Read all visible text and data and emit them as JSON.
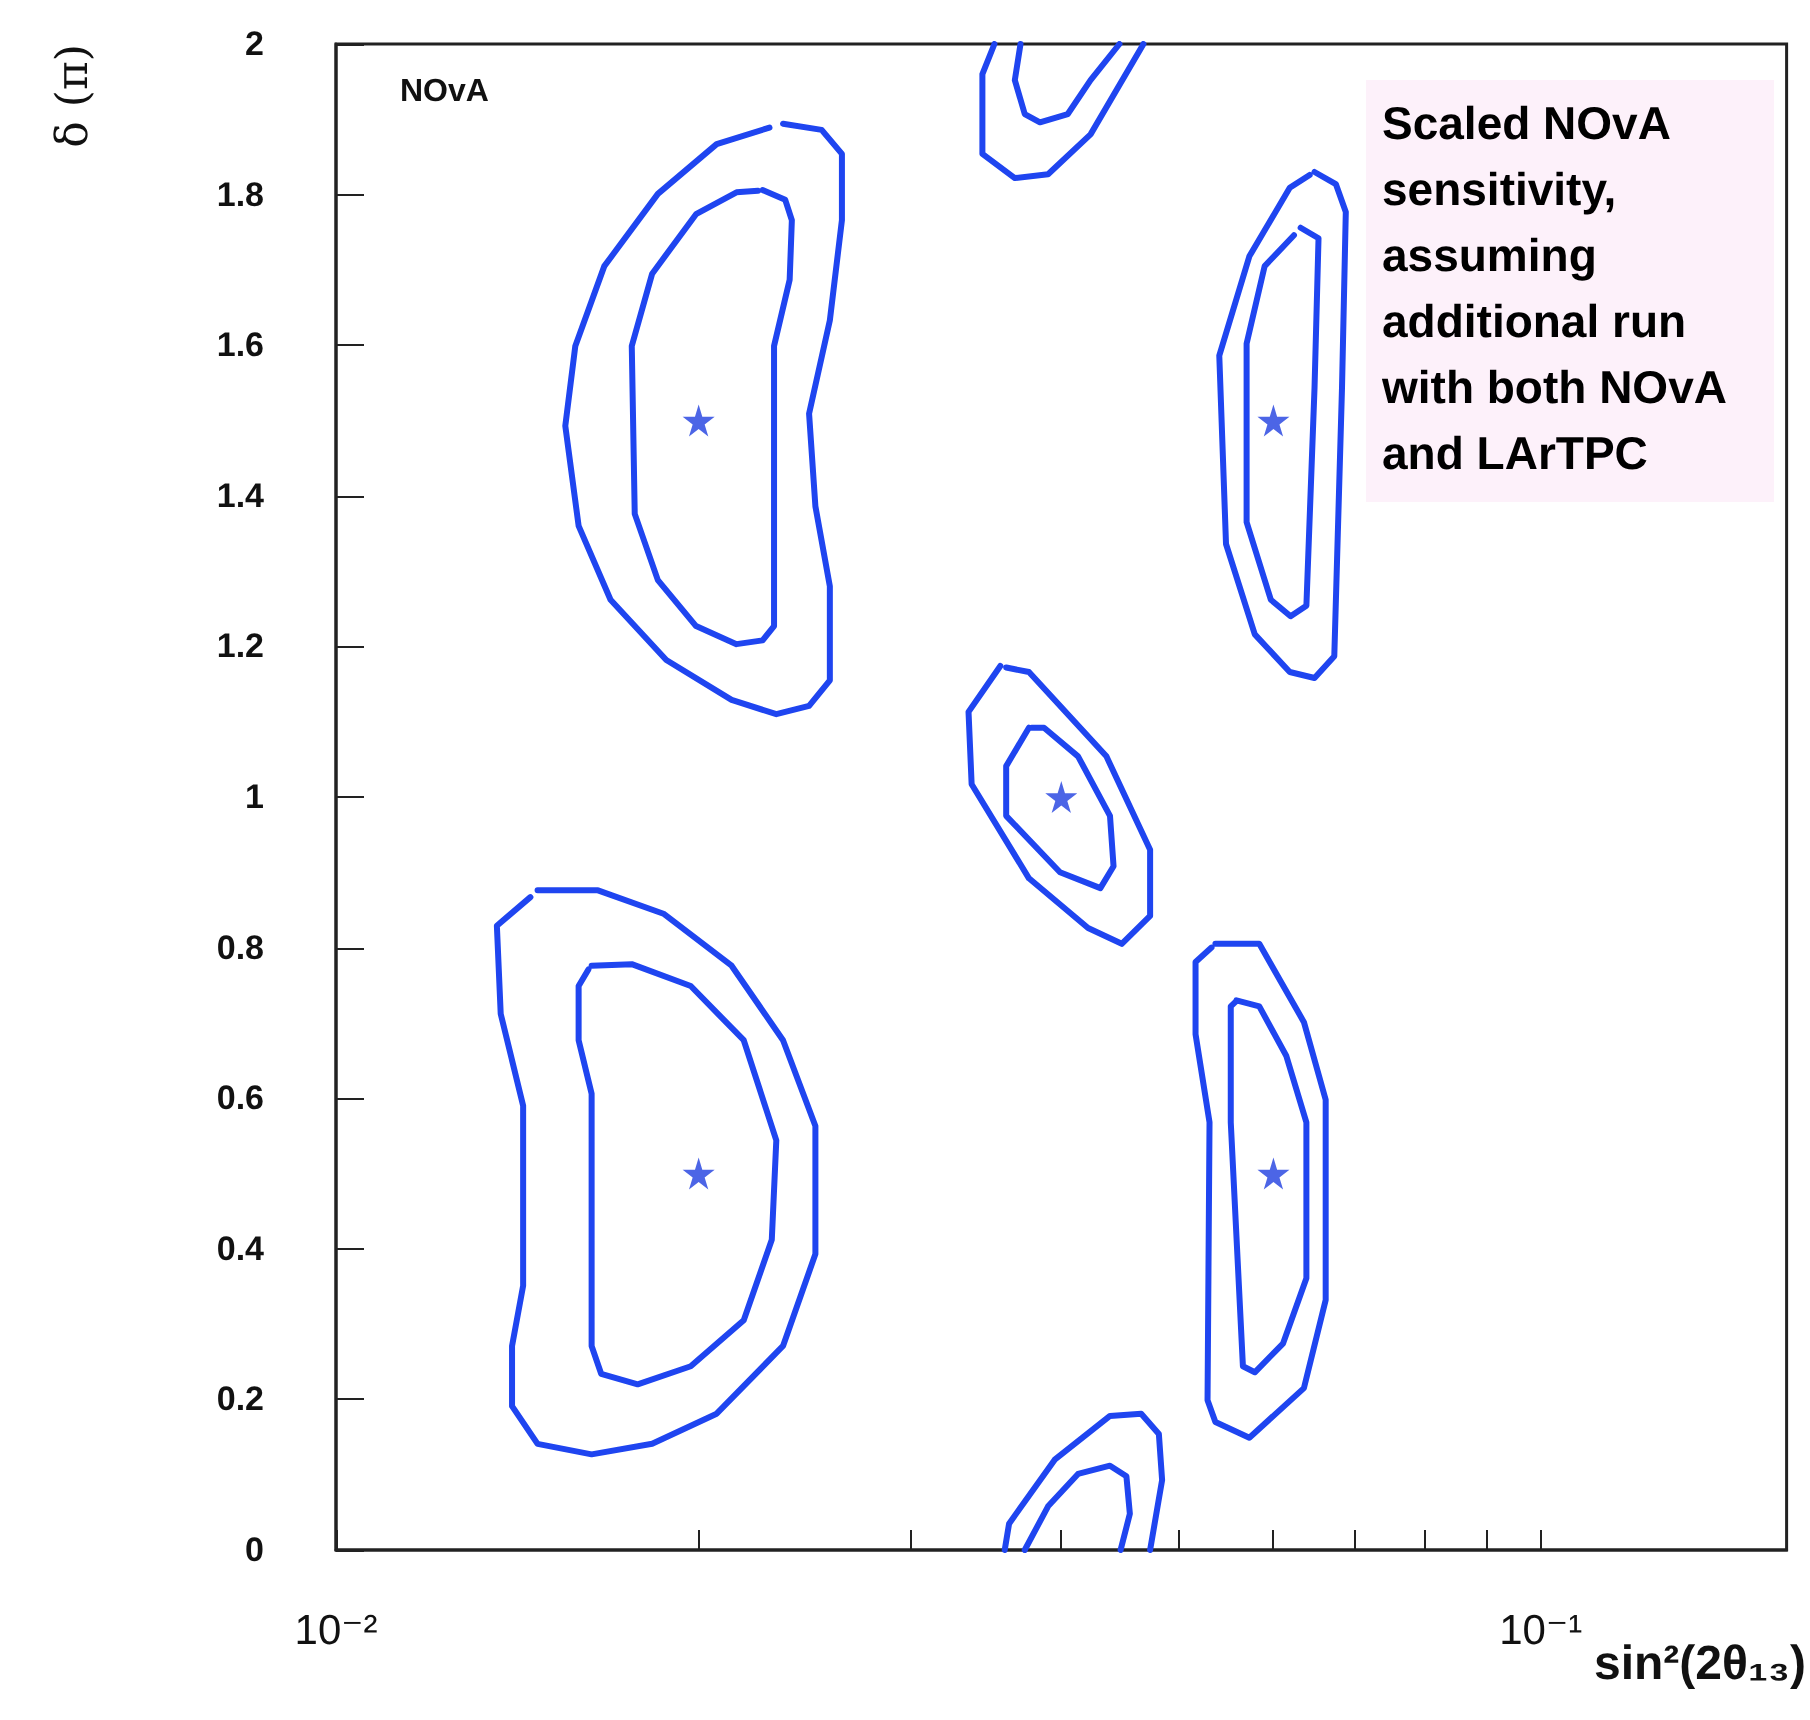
{
  "chart_data": {
    "type": "line",
    "xlabel": "sin²(2θ₁₃)",
    "ylabel": "δ (π)",
    "annotations": [
      "NOvA",
      "Scaled NOvA sensitivity, assuming additional run with both NOvA and LArTPC"
    ],
    "log": "x",
    "grid": false,
    "marker": "none",
    "line_style": "solid",
    "xlim": [
      0.01,
      0.16
    ],
    "ylim": [
      0,
      2
    ],
    "xticks": [
      {
        "value": 0.01,
        "label": "10⁻²"
      },
      {
        "value": 0.02,
        "label": null
      },
      {
        "value": 0.03,
        "label": null
      },
      {
        "value": 0.04,
        "label": null
      },
      {
        "value": 0.05,
        "label": null
      },
      {
        "value": 0.06,
        "label": null
      },
      {
        "value": 0.07,
        "label": null
      },
      {
        "value": 0.08,
        "label": null
      },
      {
        "value": 0.09,
        "label": null
      },
      {
        "value": 0.1,
        "label": "10⁻¹"
      }
    ],
    "yticks": [
      0,
      0.2,
      0.4,
      0.6,
      0.8,
      1,
      1.2,
      1.4,
      1.6,
      1.8,
      2
    ],
    "series": [
      {
        "color": "#1f45f0",
        "x": [
          0.0235,
          0.0253,
          0.0263,
          0.0263,
          0.0257,
          0.0247,
          0.025,
          0.0257,
          0.0257,
          0.0247,
          0.0232,
          0.0213,
          0.0188,
          0.0169,
          0.0159,
          0.0155,
          0.0158,
          0.0167,
          0.0185,
          0.0207,
          0.0229
        ],
        "values": [
          1.894,
          1.886,
          1.854,
          1.766,
          1.633,
          1.509,
          1.386,
          1.28,
          1.155,
          1.121,
          1.11,
          1.129,
          1.182,
          1.262,
          1.36,
          1.493,
          1.599,
          1.705,
          1.801,
          1.867,
          1.889
        ]
      },
      {
        "color": "#1f45f0",
        "x": [
          0.0226,
          0.0236,
          0.0239,
          0.0238,
          0.0231,
          0.0231,
          0.0231,
          0.0226,
          0.0215,
          0.0199,
          0.0185,
          0.0177,
          0.0176,
          0.0183,
          0.0199,
          0.0215,
          0.0224
        ],
        "values": [
          1.806,
          1.793,
          1.766,
          1.687,
          1.599,
          1.44,
          1.227,
          1.208,
          1.203,
          1.227,
          1.288,
          1.376,
          1.599,
          1.695,
          1.774,
          1.803,
          1.805
        ]
      },
      {
        "color": "#1f45f0",
        "x": [
          0.0147,
          0.0165,
          0.0187,
          0.0213,
          0.0235,
          0.025,
          0.025,
          0.0235,
          0.0207,
          0.0183,
          0.0163,
          0.0147,
          0.014,
          0.014,
          0.0143,
          0.0143,
          0.0137,
          0.0136,
          0.0145
        ],
        "values": [
          0.876,
          0.876,
          0.845,
          0.776,
          0.677,
          0.563,
          0.393,
          0.271,
          0.181,
          0.141,
          0.127,
          0.141,
          0.191,
          0.271,
          0.351,
          0.59,
          0.712,
          0.829,
          0.867
        ]
      },
      {
        "color": "#1f45f0",
        "x": [
          0.0163,
          0.0176,
          0.0197,
          0.0218,
          0.0232,
          0.023,
          0.0218,
          0.0197,
          0.0178,
          0.0166,
          0.0163,
          0.0163,
          0.0159,
          0.0159,
          0.0162
        ],
        "values": [
          0.776,
          0.778,
          0.749,
          0.677,
          0.544,
          0.412,
          0.305,
          0.244,
          0.22,
          0.234,
          0.271,
          0.606,
          0.677,
          0.749,
          0.771
        ]
      },
      {
        "color": "#1f45f0",
        "x": [
          0.0352,
          0.0344,
          0.0344,
          0.0366,
          0.039,
          0.0423,
          0.0468
        ],
        "values": [
          2,
          1.96,
          1.854,
          1.822,
          1.827,
          1.88,
          2
        ]
      },
      {
        "color": "#1f45f0",
        "x": [
          0.037,
          0.0366,
          0.0373,
          0.0384,
          0.0405,
          0.0423,
          0.0447
        ],
        "values": [
          2,
          1.952,
          1.907,
          1.896,
          1.907,
          1.952,
          2
        ]
      },
      {
        "color": "#1f45f0",
        "x": [
          0.0356,
          0.0335,
          0.0337,
          0.0376,
          0.0421,
          0.0449,
          0.0474,
          0.0474,
          0.0436,
          0.0376,
          0.036
        ],
        "values": [
          1.174,
          1.113,
          1.017,
          0.892,
          0.826,
          0.805,
          0.842,
          0.93,
          1.054,
          1.166,
          1.172
        ]
      },
      {
        "color": "#1f45f0",
        "x": [
          0.0376,
          0.036,
          0.036,
          0.0399,
          0.0431,
          0.0442,
          0.0439,
          0.0413,
          0.0387,
          0.0378
        ],
        "values": [
          1.092,
          1.041,
          0.975,
          0.9,
          0.879,
          0.908,
          0.975,
          1.054,
          1.092,
          1.092
        ]
      },
      {
        "color": "#1f45f0",
        "x": [
          0.0359,
          0.0362,
          0.0395,
          0.0439,
          0.0466,
          0.0482,
          0.0485,
          0.0474
        ],
        "values": [
          0,
          0.035,
          0.12,
          0.178,
          0.181,
          0.154,
          0.093,
          0
        ]
      },
      {
        "color": "#1f45f0",
        "x": [
          0.0373,
          0.039,
          0.0413,
          0.0439,
          0.0453,
          0.0456,
          0.0448
        ],
        "values": [
          0,
          0.058,
          0.101,
          0.112,
          0.098,
          0.048,
          0
        ]
      },
      {
        "color": "#1f45f0",
        "x": [
          0.0649,
          0.0676,
          0.0689,
          0.0684,
          0.0674,
          0.0649,
          0.0619,
          0.0579,
          0.0548,
          0.0541,
          0.0573,
          0.0619,
          0.0643
        ],
        "values": [
          1.83,
          1.814,
          1.777,
          1.543,
          1.187,
          1.158,
          1.166,
          1.216,
          1.336,
          1.586,
          1.718,
          1.809,
          1.826
        ]
      },
      {
        "color": "#1f45f0",
        "x": [
          0.0632,
          0.0654,
          0.0649,
          0.0639,
          0.062,
          0.0597,
          0.057,
          0.057,
          0.059,
          0.0624
        ],
        "values": [
          1.756,
          1.742,
          1.543,
          1.254,
          1.24,
          1.262,
          1.365,
          1.602,
          1.705,
          1.746
        ]
      },
      {
        "color": "#1f45f0",
        "x": [
          0.0537,
          0.0584,
          0.0636,
          0.0663,
          0.0663,
          0.0636,
          0.0573,
          0.0537,
          0.0529,
          0.0531,
          0.0517,
          0.0517,
          0.0533
        ],
        "values": [
          0.805,
          0.805,
          0.701,
          0.598,
          0.332,
          0.215,
          0.149,
          0.17,
          0.199,
          0.568,
          0.685,
          0.781,
          0.8
        ]
      },
      {
        "color": "#1f45f0",
        "x": [
          0.0559,
          0.0584,
          0.0615,
          0.0639,
          0.0639,
          0.0611,
          0.0579,
          0.0566,
          0.0553,
          0.0553,
          0.0558
        ],
        "values": [
          0.73,
          0.722,
          0.656,
          0.568,
          0.361,
          0.274,
          0.236,
          0.244,
          0.568,
          0.722,
          0.728
        ]
      },
      {
        "type": "scatter",
        "marker": "star",
        "color": "#1f3fe0",
        "x": [
          0.02,
          0.02,
          0.04,
          0.06,
          0.06
        ],
        "values": [
          1.5,
          0.5,
          1,
          1.5,
          0.5
        ]
      }
    ]
  }
}
